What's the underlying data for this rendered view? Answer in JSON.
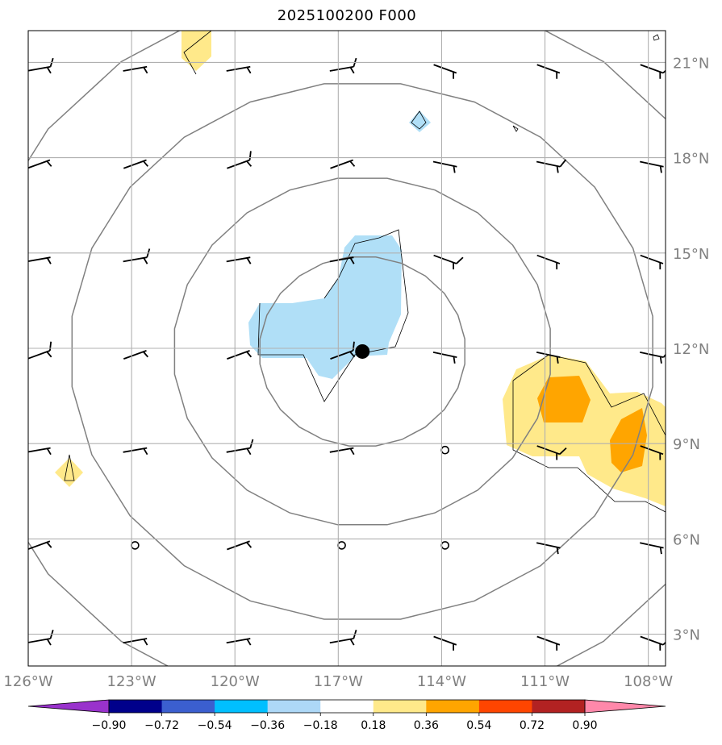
{
  "title": "2025100200 F000",
  "map": {
    "lon_range": [
      -126,
      -107.5
    ],
    "lat_range": [
      2,
      22
    ],
    "lat_ticks": [
      {
        "lat": 21,
        "label": "21°N"
      },
      {
        "lat": 18,
        "label": "18°N"
      },
      {
        "lat": 15,
        "label": "15°N"
      },
      {
        "lat": 12,
        "label": "12°N"
      },
      {
        "lat": 9,
        "label": "9°N"
      },
      {
        "lat": 6,
        "label": "6°N"
      },
      {
        "lat": 3,
        "label": "3°N"
      }
    ],
    "lon_ticks": [
      {
        "lon": -126,
        "label": "126°W"
      },
      {
        "lon": -123,
        "label": "123°W"
      },
      {
        "lon": -120,
        "label": "120°W"
      },
      {
        "lon": -117,
        "label": "117°W"
      },
      {
        "lon": -114,
        "label": "114°W"
      },
      {
        "lon": -111,
        "label": "111°W"
      },
      {
        "lon": -108,
        "label": "108°W"
      }
    ],
    "storm_center": {
      "lon": -116.3,
      "lat": 11.9
    },
    "range_rings": {
      "center": {
        "lon": -116.3,
        "lat": 11.9
      },
      "radii_deg": [
        3,
        5.5,
        8.5,
        11.5
      ]
    }
  },
  "colorbar": {
    "ticks": [
      "−0.90",
      "−0.72",
      "−0.54",
      "−0.36",
      "−0.18",
      "0.18",
      "0.36",
      "0.54",
      "0.72",
      "0.90"
    ],
    "colors": [
      "#9932cc",
      "#00008b",
      "#3b5fcf",
      "#00bfff",
      "#add8f7",
      "#ffffff",
      "#ffe98a",
      "#ffa500",
      "#ff4500",
      "#b22222",
      "#ff88aa"
    ]
  }
}
